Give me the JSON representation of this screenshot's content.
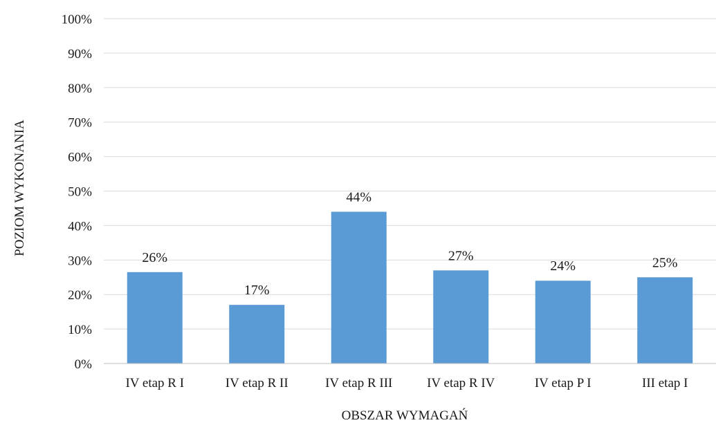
{
  "chart_data": {
    "type": "bar",
    "categories": [
      "IV etap R I",
      "IV etap R II",
      "IV etap R III",
      "IV etap R IV",
      "IV etap P I",
      "III etap I"
    ],
    "values": [
      26.5,
      17,
      44,
      27,
      24,
      25
    ],
    "data_labels": [
      "26%",
      "17%",
      "44%",
      "27%",
      "24%",
      "25%"
    ],
    "ylim": [
      0,
      100
    ],
    "yticks": [
      0,
      10,
      20,
      30,
      40,
      50,
      60,
      70,
      80,
      90,
      100
    ],
    "ytick_labels": [
      "0%",
      "10%",
      "20%",
      "30%",
      "40%",
      "50%",
      "60%",
      "70%",
      "80%",
      "90%",
      "100%"
    ],
    "xlabel": "OBSZAR WYMAGAŃ",
    "ylabel": "POZIOM WYKONANIA",
    "grid": true,
    "legend": "none",
    "bar_color": "#5b9bd5"
  }
}
